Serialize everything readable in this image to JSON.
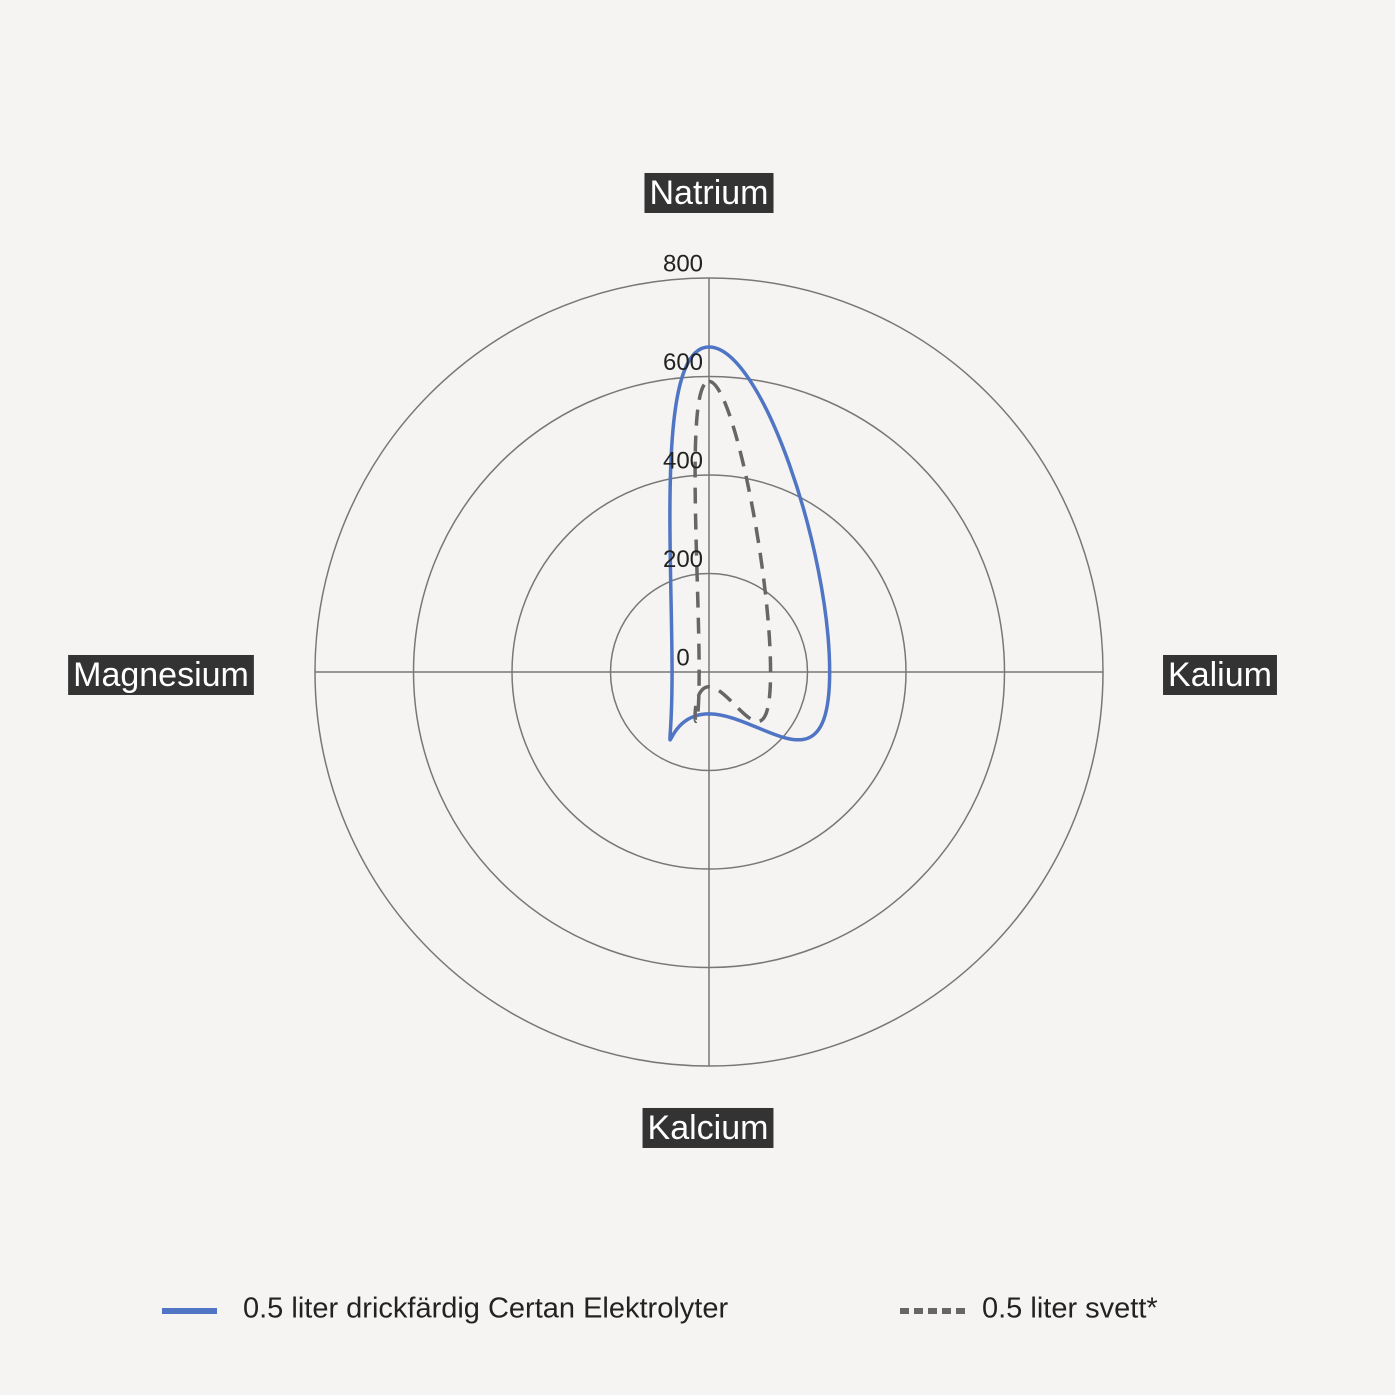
{
  "chart_data": {
    "type": "radar",
    "categories": [
      "Natrium",
      "Kalium",
      "Kalcium",
      "Magnesium"
    ],
    "series": [
      {
        "name": "0.5 liter drickfärdig Certan Elektrolyter",
        "color": "#4f75c4",
        "dash": false,
        "values": [
          660,
          245,
          85,
          75
        ]
      },
      {
        "name": "0.5 liter svett*",
        "color": "#666666",
        "dash": true,
        "values": [
          590,
          125,
          30,
          20
        ]
      }
    ],
    "rlim": [
      0,
      800
    ],
    "rticks": [
      0,
      200,
      400,
      600,
      800
    ],
    "grid": true
  }
}
